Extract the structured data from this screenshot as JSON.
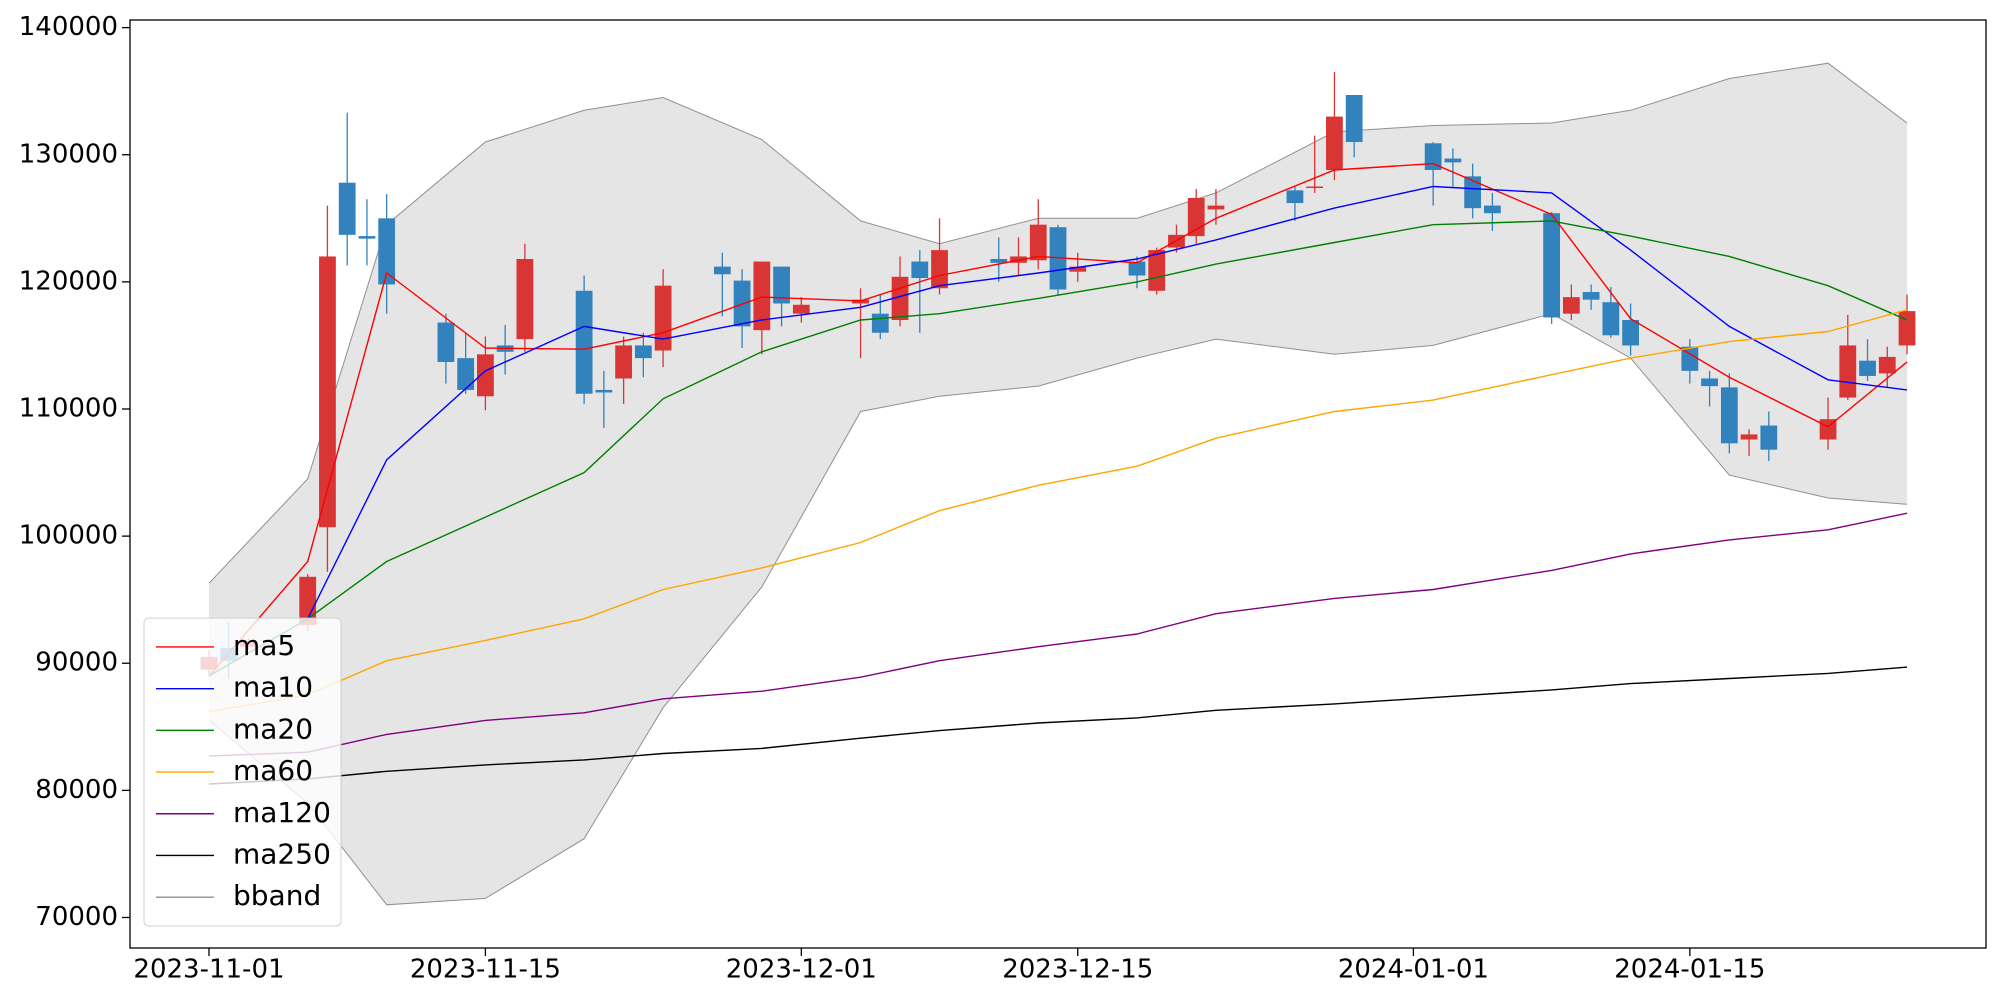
{
  "chart_data": {
    "type": "candlestick",
    "xlim": [
      "2023-10-28",
      "2024-01-30"
    ],
    "ylim": [
      67600,
      140600
    ],
    "yticks": [
      70000,
      80000,
      90000,
      100000,
      110000,
      120000,
      130000,
      140000
    ],
    "xticks": [
      "2023-11-01",
      "2023-11-15",
      "2023-12-01",
      "2023-12-15",
      "2024-01-01",
      "2024-01-15"
    ],
    "legend": "lower left",
    "up_color": "#d93535",
    "down_color": "#3282bd",
    "candles": {
      "x": [
        "2023-11-01",
        "2023-11-02",
        "2023-11-03",
        "2023-11-06",
        "2023-11-07",
        "2023-11-08",
        "2023-11-09",
        "2023-11-10",
        "2023-11-13",
        "2023-11-14",
        "2023-11-15",
        "2023-11-16",
        "2023-11-17",
        "2023-11-20",
        "2023-11-21",
        "2023-11-22",
        "2023-11-23",
        "2023-11-24",
        "2023-11-27",
        "2023-11-28",
        "2023-11-29",
        "2023-11-30",
        "2023-12-01",
        "2023-12-04",
        "2023-12-05",
        "2023-12-06",
        "2023-12-07",
        "2023-12-08",
        "2023-12-11",
        "2023-12-12",
        "2023-12-13",
        "2023-12-14",
        "2023-12-15",
        "2023-12-18",
        "2023-12-19",
        "2023-12-20",
        "2023-12-21",
        "2023-12-22",
        "2023-12-26",
        "2023-12-27",
        "2023-12-28",
        "2023-12-29",
        "2024-01-02",
        "2024-01-03",
        "2024-01-04",
        "2024-01-05",
        "2024-01-08",
        "2024-01-09",
        "2024-01-10",
        "2024-01-11",
        "2024-01-12",
        "2024-01-15",
        "2024-01-16",
        "2024-01-17",
        "2024-01-18",
        "2024-01-19",
        "2024-01-22",
        "2024-01-23",
        "2024-01-24",
        "2024-01-25",
        "2024-01-26"
      ],
      "open": [
        89500,
        91200,
        91300,
        93000,
        100700,
        127800,
        123600,
        125000,
        116800,
        114000,
        111000,
        115000,
        115500,
        119300,
        111500,
        112400,
        115000,
        114600,
        121200,
        120100,
        116200,
        121200,
        117500,
        118300,
        117500,
        117000,
        121600,
        119500,
        121800,
        121500,
        121700,
        124300,
        120800,
        121600,
        119300,
        122700,
        123600,
        125700,
        127200,
        127400,
        128800,
        134700,
        130900,
        129700,
        128300,
        126000,
        125400,
        117500,
        119200,
        118400,
        117000,
        114900,
        112400,
        111700,
        107600,
        108700,
        107600,
        110900,
        113800,
        112800,
        115000
      ],
      "high": [
        91000,
        93200,
        92000,
        97000,
        126000,
        133300,
        126500,
        126900,
        117500,
        116000,
        115700,
        116600,
        123000,
        120500,
        113000,
        115700,
        116000,
        121000,
        122300,
        121000,
        121600,
        121200,
        118800,
        119500,
        119000,
        122000,
        122500,
        125000,
        123500,
        123500,
        126500,
        124500,
        122300,
        122000,
        122700,
        124500,
        127300,
        127300,
        127500,
        131500,
        136500,
        134700,
        131000,
        130500,
        129300,
        127000,
        125500,
        119800,
        119800,
        119600,
        118300,
        115500,
        113000,
        112800,
        108400,
        109800,
        110900,
        117400,
        115500,
        114900,
        119000
      ],
      "low": [
        89000,
        88800,
        91000,
        92500,
        97200,
        121300,
        121300,
        117500,
        112000,
        111200,
        109900,
        112700,
        114500,
        110400,
        108500,
        110400,
        112500,
        113300,
        117300,
        114800,
        114300,
        116500,
        116800,
        114000,
        115500,
        116500,
        116000,
        119000,
        120000,
        120500,
        121000,
        119000,
        120000,
        119500,
        119000,
        122300,
        123000,
        124500,
        124800,
        127000,
        128000,
        129800,
        126000,
        127500,
        125000,
        124000,
        116700,
        117000,
        117800,
        115600,
        114200,
        112000,
        110200,
        106500,
        106300,
        105900,
        106800,
        110700,
        112200,
        111700,
        114300
      ],
      "close": [
        90500,
        90200,
        91700,
        96800,
        122000,
        123700,
        123400,
        119800,
        113700,
        111500,
        114300,
        114500,
        121800,
        111200,
        111300,
        115000,
        114000,
        119700,
        120600,
        116500,
        121600,
        118300,
        118200,
        118600,
        116000,
        120400,
        120300,
        122500,
        121500,
        122000,
        124500,
        119400,
        121200,
        120500,
        122500,
        123700,
        126600,
        126000,
        126200,
        127500,
        133000,
        131000,
        128800,
        129400,
        125800,
        125400,
        117200,
        118800,
        118600,
        115800,
        115000,
        113000,
        111800,
        107300,
        108000,
        106800,
        109200,
        115000,
        112600,
        114100,
        117700
      ]
    },
    "lines_x": [
      "2023-11-01",
      "2023-11-06",
      "2023-11-10",
      "2023-11-15",
      "2023-11-20",
      "2023-11-24",
      "2023-11-29",
      "2023-12-04",
      "2023-12-08",
      "2023-12-13",
      "2023-12-18",
      "2023-12-22",
      "2023-12-28",
      "2024-01-02",
      "2024-01-08",
      "2024-01-12",
      "2024-01-17",
      "2024-01-22",
      "2024-01-26"
    ],
    "series": [
      {
        "name": "ma5",
        "color": "#ff0000",
        "values": [
          89000,
          98000,
          120700,
          114800,
          114700,
          116000,
          118800,
          118500,
          120500,
          122000,
          121500,
          125000,
          128800,
          129300,
          125300,
          117100,
          112500,
          108600,
          113700
        ]
      },
      {
        "name": "ma10",
        "color": "#0000ff",
        "values": [
          89000,
          93500,
          106000,
          113000,
          116500,
          115500,
          117000,
          118000,
          119700,
          120700,
          121800,
          123300,
          125800,
          127500,
          127000,
          122500,
          116500,
          112300,
          111500
        ]
      },
      {
        "name": "ma20",
        "color": "#008000",
        "values": [
          89000,
          93500,
          98000,
          101500,
          105000,
          110800,
          114500,
          117000,
          117500,
          118700,
          120000,
          121400,
          123100,
          124500,
          124800,
          123600,
          122000,
          119700,
          117000
        ]
      },
      {
        "name": "ma60",
        "color": "#ffa500",
        "values": [
          86200,
          87500,
          90200,
          91800,
          93500,
          95800,
          97500,
          99500,
          102000,
          104000,
          105500,
          107700,
          109800,
          110700,
          112700,
          114000,
          115300,
          116100,
          117800
        ]
      },
      {
        "name": "ma120",
        "color": "#800080",
        "values": [
          82700,
          83000,
          84400,
          85500,
          86100,
          87200,
          87800,
          88900,
          90200,
          91300,
          92300,
          93900,
          95100,
          95800,
          97300,
          98600,
          99700,
          100500,
          101800
        ]
      },
      {
        "name": "ma250",
        "color": "#000000",
        "values": [
          80500,
          80900,
          81500,
          82000,
          82400,
          82900,
          83300,
          84100,
          84700,
          85300,
          85700,
          86300,
          86800,
          87300,
          87900,
          88400,
          88800,
          89200,
          89700
        ]
      }
    ],
    "bband": {
      "name": "bband",
      "color": "#909090",
      "fill": "#e5e5e5",
      "upper": [
        96300,
        104500,
        124500,
        131000,
        133500,
        134500,
        131200,
        124800,
        123000,
        125000,
        125000,
        127000,
        131800,
        132300,
        132500,
        133500,
        136000,
        137200,
        132500
      ],
      "lower": [
        85500,
        79000,
        71000,
        71500,
        76200,
        86500,
        96000,
        109800,
        111000,
        111800,
        114000,
        115500,
        114300,
        115000,
        117500,
        114000,
        104800,
        103000,
        102500
      ]
    }
  }
}
